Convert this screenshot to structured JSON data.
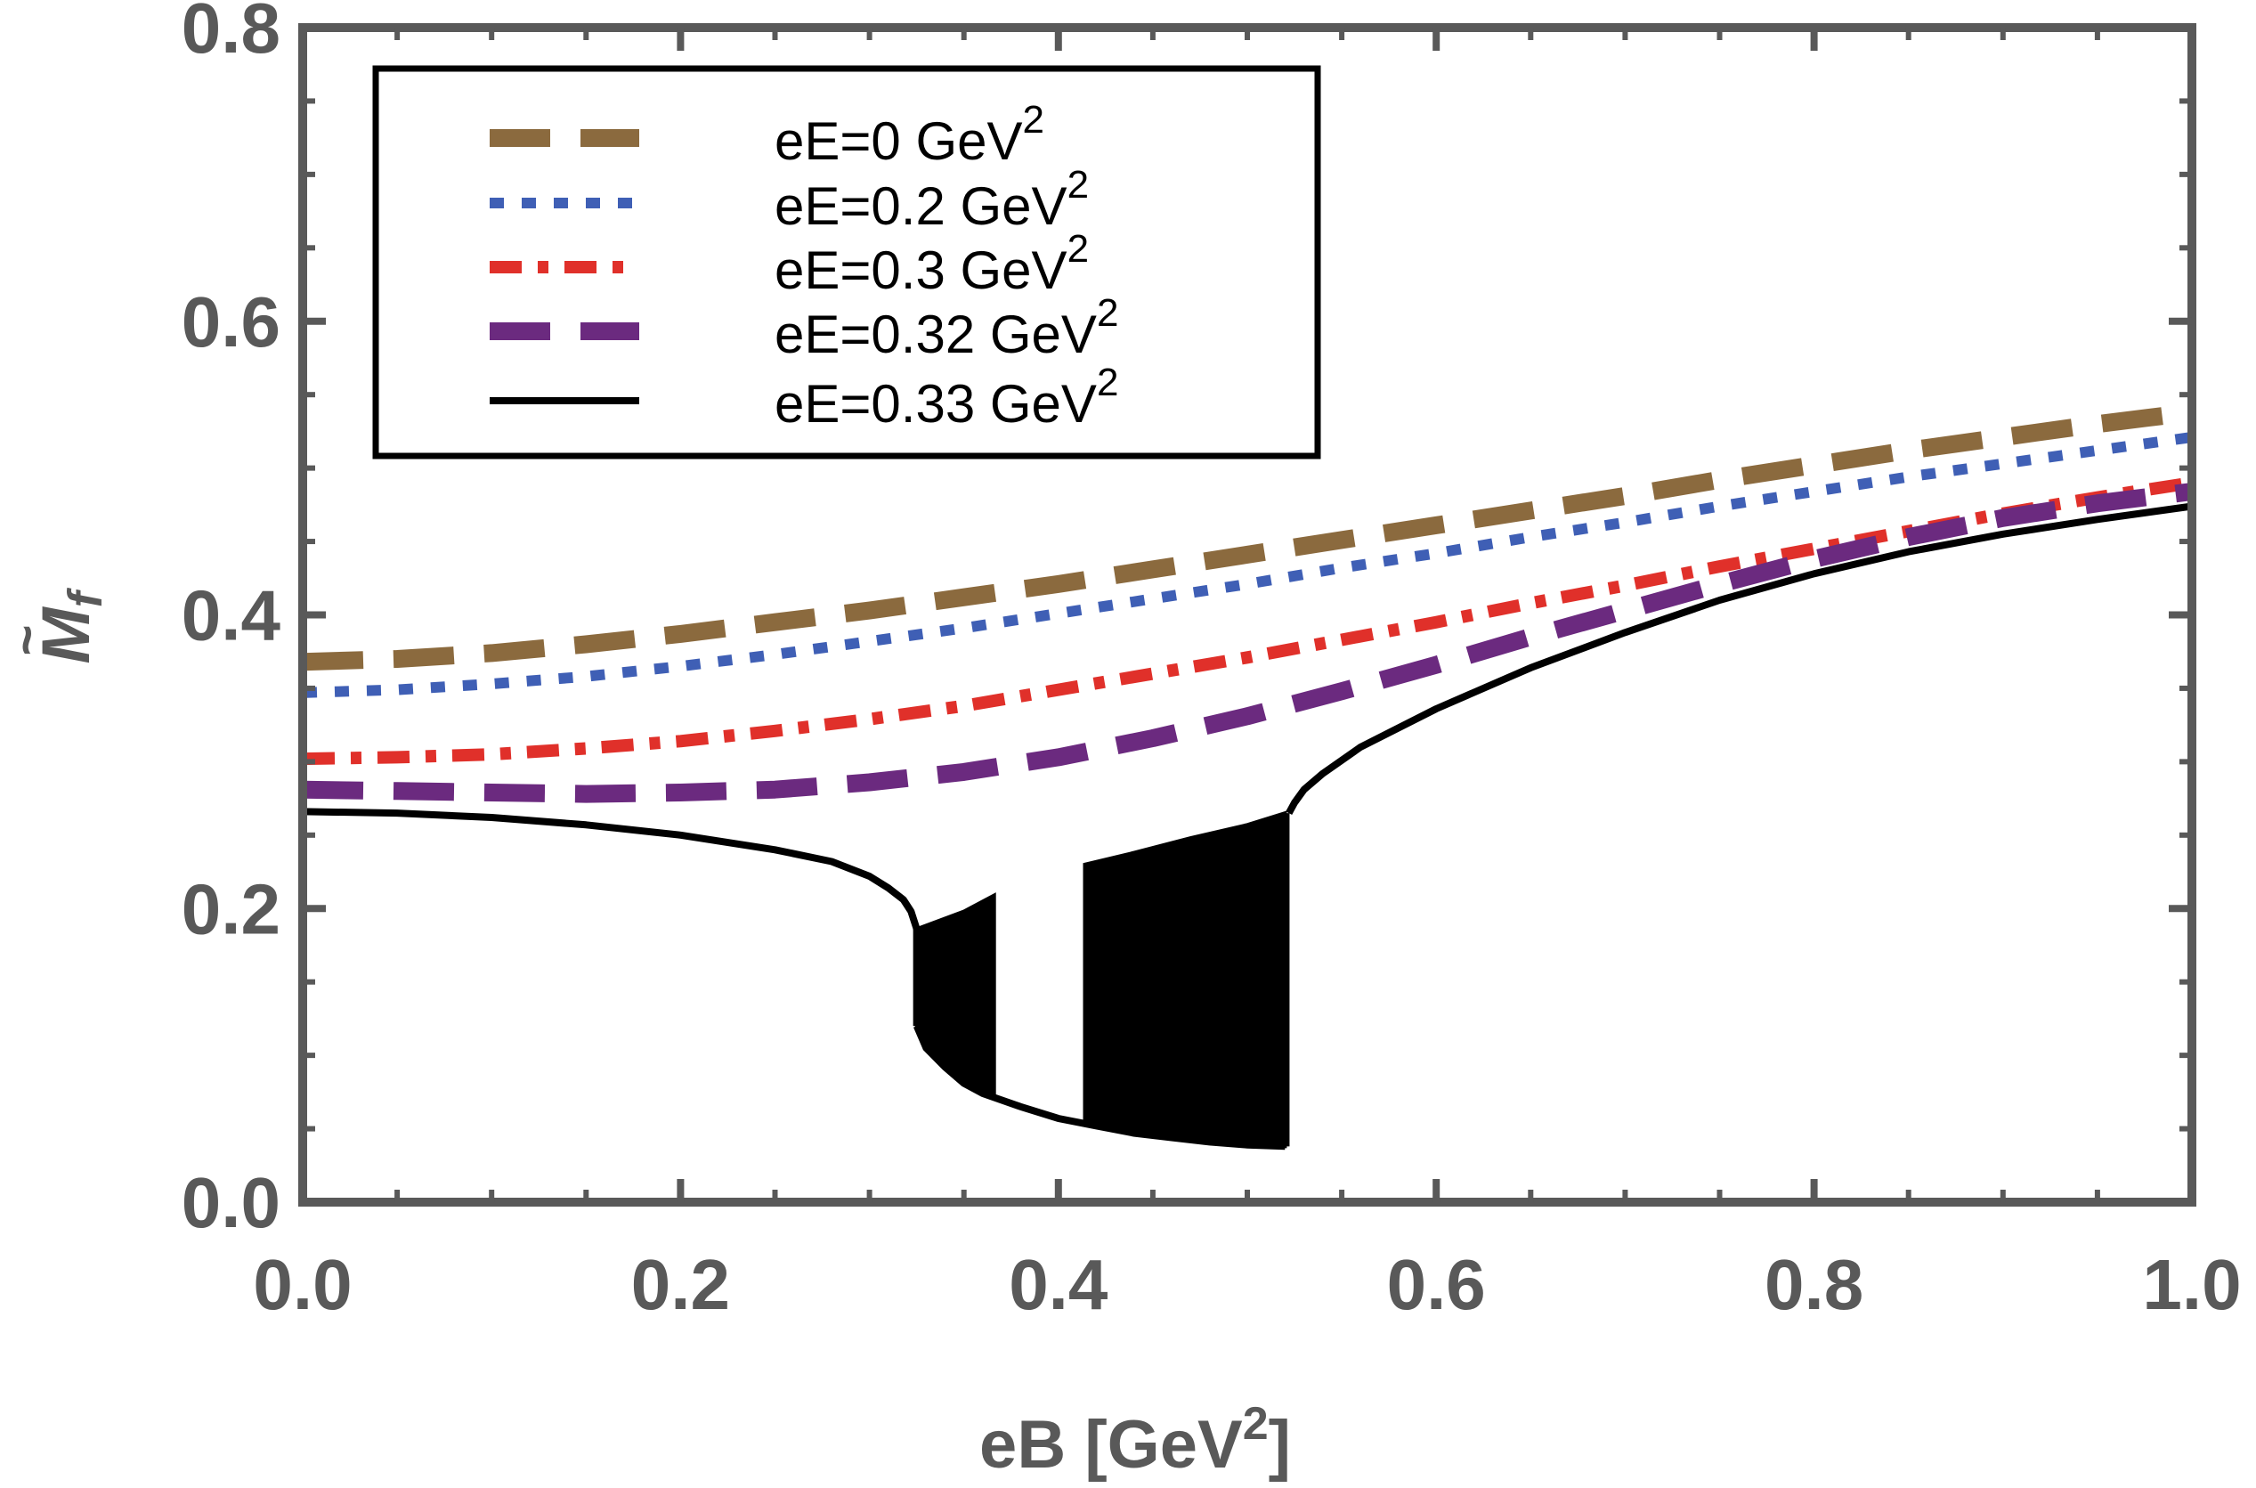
{
  "chart_data": {
    "type": "line",
    "xlabel": "eB [GeV",
    "xlabel_sup": "2",
    "xlabel_close": "]",
    "ylabel": "M",
    "ylabel_sub": "f",
    "ylabel_accent": "~",
    "xlim": [
      0.0,
      1.0
    ],
    "ylim": [
      0.0,
      0.8
    ],
    "x_ticks": [
      "0.0",
      "0.2",
      "0.4",
      "0.6",
      "0.8",
      "1.0"
    ],
    "y_ticks": [
      "0.0",
      "0.2",
      "0.4",
      "0.6",
      "0.8"
    ],
    "legend_position": "top-left",
    "grid": false,
    "axis_color": "#595959",
    "series": [
      {
        "name": "eE=0 GeV",
        "name_sup": "2",
        "color": "#8B6A3E",
        "style": "dashed",
        "points": [
          [
            0.0,
            0.368
          ],
          [
            0.05,
            0.37
          ],
          [
            0.1,
            0.374
          ],
          [
            0.15,
            0.38
          ],
          [
            0.2,
            0.387
          ],
          [
            0.25,
            0.395
          ],
          [
            0.3,
            0.403
          ],
          [
            0.35,
            0.412
          ],
          [
            0.4,
            0.421
          ],
          [
            0.45,
            0.431
          ],
          [
            0.5,
            0.441
          ],
          [
            0.55,
            0.451
          ],
          [
            0.6,
            0.461
          ],
          [
            0.65,
            0.471
          ],
          [
            0.7,
            0.481
          ],
          [
            0.75,
            0.492
          ],
          [
            0.8,
            0.502
          ],
          [
            0.85,
            0.512
          ],
          [
            0.9,
            0.521
          ],
          [
            0.95,
            0.53
          ],
          [
            1.0,
            0.538
          ]
        ]
      },
      {
        "name": "eE=0.2 GeV",
        "name_sup": "2",
        "color": "#3F5FB5",
        "style": "dotted",
        "points": [
          [
            0.0,
            0.347
          ],
          [
            0.05,
            0.349
          ],
          [
            0.1,
            0.353
          ],
          [
            0.15,
            0.358
          ],
          [
            0.2,
            0.365
          ],
          [
            0.25,
            0.373
          ],
          [
            0.3,
            0.382
          ],
          [
            0.35,
            0.391
          ],
          [
            0.4,
            0.401
          ],
          [
            0.45,
            0.411
          ],
          [
            0.5,
            0.421
          ],
          [
            0.55,
            0.432
          ],
          [
            0.6,
            0.442
          ],
          [
            0.65,
            0.453
          ],
          [
            0.7,
            0.463
          ],
          [
            0.75,
            0.474
          ],
          [
            0.8,
            0.484
          ],
          [
            0.85,
            0.494
          ],
          [
            0.9,
            0.503
          ],
          [
            0.95,
            0.512
          ],
          [
            1.0,
            0.521
          ]
        ]
      },
      {
        "name": "eE=0.3 GeV",
        "name_sup": "2",
        "color": "#E0302A",
        "style": "dashdot",
        "points": [
          [
            0.0,
            0.302
          ],
          [
            0.05,
            0.303
          ],
          [
            0.1,
            0.305
          ],
          [
            0.15,
            0.309
          ],
          [
            0.2,
            0.314
          ],
          [
            0.25,
            0.321
          ],
          [
            0.3,
            0.329
          ],
          [
            0.35,
            0.338
          ],
          [
            0.4,
            0.349
          ],
          [
            0.45,
            0.36
          ],
          [
            0.5,
            0.371
          ],
          [
            0.55,
            0.383
          ],
          [
            0.6,
            0.395
          ],
          [
            0.65,
            0.408
          ],
          [
            0.7,
            0.42
          ],
          [
            0.75,
            0.433
          ],
          [
            0.8,
            0.445
          ],
          [
            0.85,
            0.457
          ],
          [
            0.9,
            0.469
          ],
          [
            0.95,
            0.48
          ],
          [
            1.0,
            0.49
          ]
        ]
      },
      {
        "name": "eE=0.32 GeV",
        "name_sup": "2",
        "color": "#6B2A7F",
        "style": "dashed",
        "points": [
          [
            0.0,
            0.281
          ],
          [
            0.05,
            0.28
          ],
          [
            0.1,
            0.279
          ],
          [
            0.15,
            0.278
          ],
          [
            0.2,
            0.279
          ],
          [
            0.25,
            0.281
          ],
          [
            0.3,
            0.286
          ],
          [
            0.35,
            0.293
          ],
          [
            0.4,
            0.303
          ],
          [
            0.45,
            0.316
          ],
          [
            0.5,
            0.331
          ],
          [
            0.55,
            0.348
          ],
          [
            0.6,
            0.366
          ],
          [
            0.65,
            0.385
          ],
          [
            0.7,
            0.403
          ],
          [
            0.75,
            0.421
          ],
          [
            0.8,
            0.438
          ],
          [
            0.85,
            0.453
          ],
          [
            0.9,
            0.466
          ],
          [
            0.95,
            0.476
          ],
          [
            1.0,
            0.484
          ]
        ]
      },
      {
        "name": "eE=0.33 GeV",
        "name_sup": "2",
        "color": "#000000",
        "style": "solid",
        "branch1": [
          [
            0.0,
            0.266
          ],
          [
            0.05,
            0.265
          ],
          [
            0.1,
            0.262
          ],
          [
            0.15,
            0.257
          ],
          [
            0.2,
            0.25
          ],
          [
            0.25,
            0.24
          ],
          [
            0.28,
            0.232
          ],
          [
            0.3,
            0.222
          ],
          [
            0.31,
            0.214
          ],
          [
            0.318,
            0.206
          ],
          [
            0.322,
            0.198
          ],
          [
            0.325,
            0.186
          ]
        ],
        "lower_envelope": [
          [
            0.325,
            0.12
          ],
          [
            0.33,
            0.105
          ],
          [
            0.34,
            0.092
          ],
          [
            0.35,
            0.081
          ],
          [
            0.36,
            0.074
          ],
          [
            0.38,
            0.065
          ],
          [
            0.4,
            0.057
          ],
          [
            0.42,
            0.052
          ],
          [
            0.44,
            0.047
          ],
          [
            0.46,
            0.044
          ],
          [
            0.48,
            0.041
          ],
          [
            0.5,
            0.039
          ],
          [
            0.52,
            0.038
          ]
        ],
        "upper_envelope_a": [
          [
            0.325,
            0.186
          ],
          [
            0.35,
            0.198
          ],
          [
            0.366,
            0.209
          ]
        ],
        "upper_envelope_b": [
          [
            0.414,
            0.23
          ],
          [
            0.44,
            0.238
          ],
          [
            0.47,
            0.248
          ],
          [
            0.5,
            0.257
          ],
          [
            0.52,
            0.265
          ]
        ],
        "branch2": [
          [
            0.522,
            0.265
          ],
          [
            0.525,
            0.272
          ],
          [
            0.53,
            0.281
          ],
          [
            0.54,
            0.292
          ],
          [
            0.56,
            0.31
          ],
          [
            0.6,
            0.336
          ],
          [
            0.65,
            0.364
          ],
          [
            0.7,
            0.388
          ],
          [
            0.75,
            0.41
          ],
          [
            0.8,
            0.428
          ],
          [
            0.85,
            0.443
          ],
          [
            0.9,
            0.455
          ],
          [
            0.95,
            0.465
          ],
          [
            1.0,
            0.474
          ]
        ]
      }
    ]
  }
}
